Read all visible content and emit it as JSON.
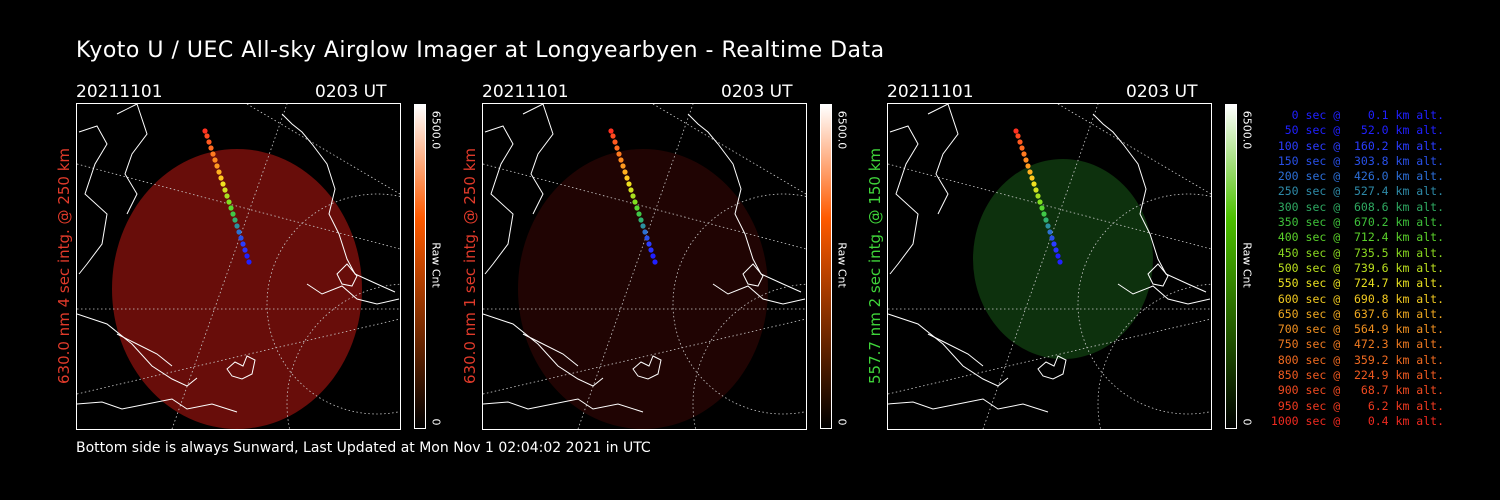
{
  "header": {
    "title": "Kyoto U / UEC All-sky Airglow Imager at Longyearbyen - Realtime Data"
  },
  "footer": {
    "text": "Bottom side is always Sunward, Last Updated at Mon Nov  1 02:04:02 2021 in UTC"
  },
  "panels": [
    {
      "date": "20211101",
      "time": "0203 UT",
      "ylabel": "630.0 nm  4 sec intg. @ 250 km",
      "label_color": "#e03a2a",
      "glow_color": "#7a0f0c",
      "glow_opacity": 0.85,
      "colorbar": {
        "max": "6500.0",
        "min": "0",
        "unit": "Raw Cnt",
        "color": "#ff5a00"
      }
    },
    {
      "date": "20211101",
      "time": "0203 UT",
      "ylabel": "630.0 nm  1 sec intg. @ 250 km",
      "label_color": "#e03a2a",
      "glow_color": "#3a0706",
      "glow_opacity": 0.55,
      "colorbar": {
        "max": "6500.0",
        "min": "0",
        "unit": "Raw Cnt",
        "color": "#ff5a00"
      }
    },
    {
      "date": "20211101",
      "time": "0203 UT",
      "ylabel": "557.7 nm  2 sec intg. @ 150 km",
      "label_color": "#3fd43a",
      "glow_color": "#0f3a0f",
      "glow_opacity": 0.85,
      "colorbar": {
        "max": "6500.0",
        "min": "0",
        "unit": "Raw Cnt",
        "color": "#4cc000"
      }
    }
  ],
  "trajectory_legend": [
    {
      "text": "   0 sec @    0.1 km alt.",
      "color": "#2020ff"
    },
    {
      "text": "  50 sec @   52.0 km alt.",
      "color": "#2020ff"
    },
    {
      "text": " 100 sec @  160.2 km alt.",
      "color": "#2a3cff"
    },
    {
      "text": " 150 sec @  303.8 km alt.",
      "color": "#2850e8"
    },
    {
      "text": " 200 sec @  426.0 km alt.",
      "color": "#2c6ed8"
    },
    {
      "text": " 250 sec @  527.4 km alt.",
      "color": "#2e8aa8"
    },
    {
      "text": " 300 sec @  608.6 km alt.",
      "color": "#2ea860"
    },
    {
      "text": " 350 sec @  670.2 km alt.",
      "color": "#3ec03a"
    },
    {
      "text": " 400 sec @  712.4 km alt.",
      "color": "#5ad02a"
    },
    {
      "text": " 450 sec @  735.5 km alt.",
      "color": "#8ad820"
    },
    {
      "text": " 500 sec @  739.6 km alt.",
      "color": "#bce01e"
    },
    {
      "text": " 550 sec @  724.7 km alt.",
      "color": "#e8e020"
    },
    {
      "text": " 600 sec @  690.8 km alt.",
      "color": "#f0c820"
    },
    {
      "text": " 650 sec @  637.6 km alt.",
      "color": "#f0a820"
    },
    {
      "text": " 700 sec @  564.9 km alt.",
      "color": "#f09020"
    },
    {
      "text": " 750 sec @  472.3 km alt.",
      "color": "#f07a20"
    },
    {
      "text": " 800 sec @  359.2 km alt.",
      "color": "#f06a20"
    },
    {
      "text": " 850 sec @  224.9 km alt.",
      "color": "#f05a20"
    },
    {
      "text": " 900 sec @   68.7 km alt.",
      "color": "#f04a20"
    },
    {
      "text": " 950 sec @    6.2 km alt.",
      "color": "#f03a20"
    },
    {
      "text": "1000 sec @    0.4 km alt.",
      "color": "#f02a20"
    }
  ]
}
